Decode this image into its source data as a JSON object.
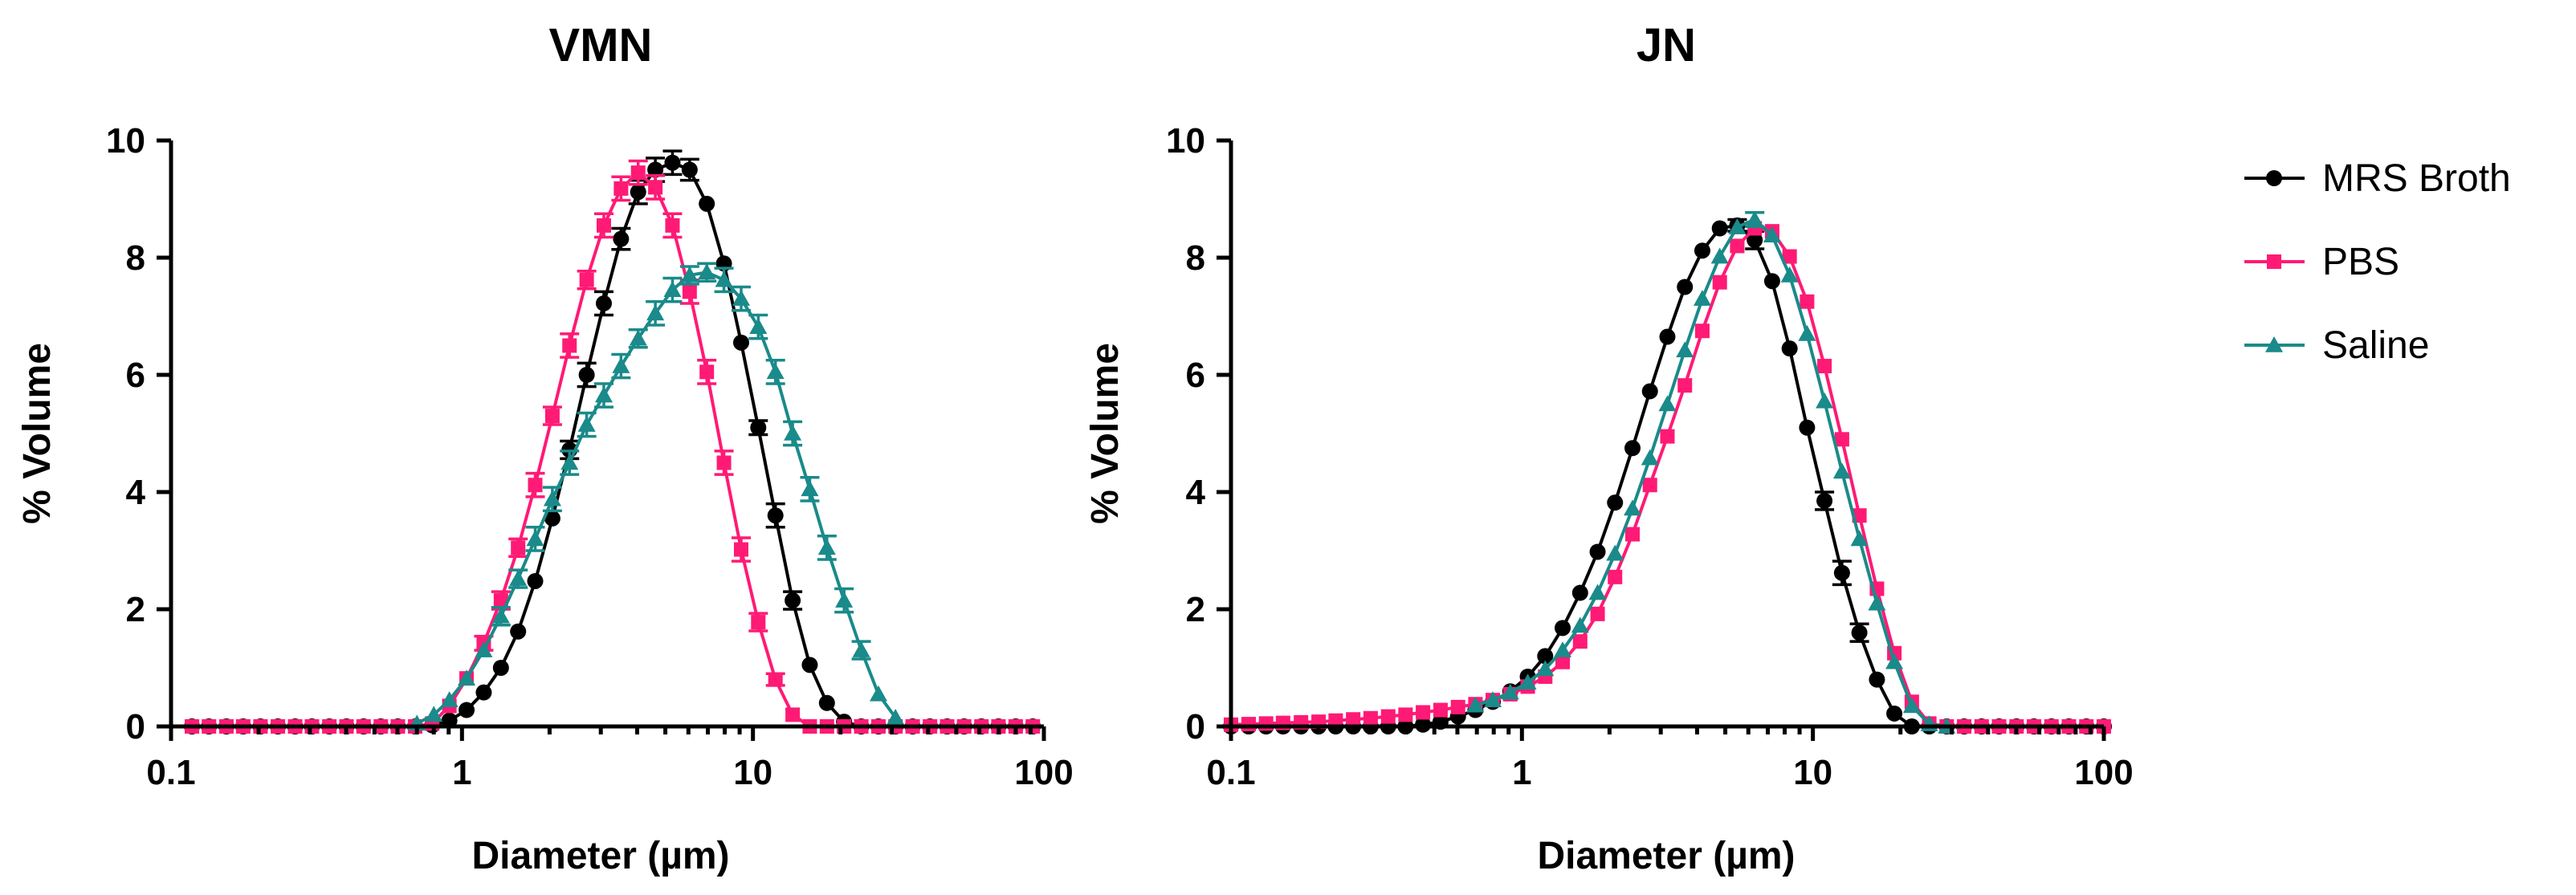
{
  "legend": {
    "entries": [
      {
        "name": "MRS Broth",
        "color": "#000000",
        "marker": "circle"
      },
      {
        "name": "PBS",
        "color": "#ff1a75",
        "marker": "square"
      },
      {
        "name": "Saline",
        "color": "#1a8a8a",
        "marker": "triangle"
      }
    ],
    "placement": "right"
  },
  "chart_data": [
    {
      "type": "line",
      "title": "VMN",
      "xlabel": "Diameter (µm)",
      "ylabel": "% Volume",
      "xscale": "log",
      "xlim": [
        0.1,
        100
      ],
      "ylim": [
        0,
        10
      ],
      "xticks": [
        0.1,
        1,
        10,
        100
      ],
      "xtick_labels": [
        "0.1",
        "1",
        "10",
        "100"
      ],
      "yticks": [
        0,
        2,
        4,
        6,
        8,
        10
      ],
      "ytick_labels": [
        "0",
        "2",
        "4",
        "6",
        "8",
        "10"
      ],
      "series": [
        {
          "name": "MRS Broth",
          "x": [
            0.118,
            0.135,
            0.155,
            0.177,
            0.203,
            0.233,
            0.267,
            0.305,
            0.35,
            0.401,
            0.459,
            0.526,
            0.602,
            0.69,
            0.79,
            0.905,
            1.037,
            1.188,
            1.361,
            1.559,
            1.785,
            2.045,
            2.342,
            2.683,
            3.073,
            3.52,
            4.032,
            4.619,
            5.29,
            6.06,
            6.94,
            7.95,
            9.11,
            10.43,
            11.95,
            13.69,
            15.68,
            17.96,
            20.57,
            23.57,
            27.0,
            30.9,
            35.4,
            40.6,
            46.5,
            53.2,
            61.0,
            69.8,
            80.0,
            91.6
          ],
          "y": [
            0,
            0,
            0,
            0,
            0,
            0,
            0,
            0,
            0,
            0,
            0,
            0,
            0,
            0,
            0.02,
            0.1,
            0.28,
            0.58,
            1.0,
            1.62,
            2.48,
            3.55,
            4.72,
            6.0,
            7.22,
            8.32,
            9.12,
            9.5,
            9.62,
            9.5,
            8.92,
            7.9,
            6.55,
            5.1,
            3.6,
            2.15,
            1.05,
            0.4,
            0.08,
            0,
            0,
            0,
            0,
            0,
            0,
            0,
            0,
            0,
            0,
            0
          ],
          "err": [
            0,
            0,
            0,
            0,
            0,
            0,
            0,
            0,
            0,
            0,
            0,
            0,
            0,
            0,
            0,
            0,
            0,
            0,
            0,
            0,
            0,
            0,
            0.15,
            0.2,
            0.2,
            0.18,
            0.2,
            0.2,
            0.2,
            0.18,
            0,
            0,
            0,
            0.12,
            0.2,
            0.15,
            0,
            0,
            0,
            0,
            0,
            0,
            0,
            0,
            0,
            0,
            0,
            0,
            0,
            0
          ]
        },
        {
          "name": "PBS",
          "x": [
            0.118,
            0.135,
            0.155,
            0.177,
            0.203,
            0.233,
            0.267,
            0.305,
            0.35,
            0.401,
            0.459,
            0.526,
            0.602,
            0.69,
            0.79,
            0.905,
            1.037,
            1.188,
            1.361,
            1.559,
            1.785,
            2.045,
            2.342,
            2.683,
            3.073,
            3.52,
            4.032,
            4.619,
            5.29,
            6.06,
            6.94,
            7.95,
            9.11,
            10.43,
            11.95,
            13.69,
            15.68,
            17.96,
            20.57,
            23.57,
            27.0,
            30.9,
            35.4,
            40.6,
            46.5,
            53.2,
            61.0,
            69.8,
            80.0,
            91.6
          ],
          "y": [
            0,
            0,
            0,
            0,
            0,
            0,
            0,
            0,
            0,
            0,
            0,
            0,
            0,
            0,
            0.05,
            0.35,
            0.82,
            1.42,
            2.15,
            3.05,
            4.12,
            5.3,
            6.5,
            7.62,
            8.55,
            9.18,
            9.45,
            9.2,
            8.55,
            7.42,
            6.05,
            4.5,
            3.02,
            1.78,
            0.8,
            0.2,
            0,
            0,
            0,
            0,
            0,
            0,
            0,
            0,
            0,
            0,
            0,
            0,
            0,
            0
          ],
          "err": [
            0,
            0,
            0,
            0,
            0,
            0,
            0,
            0,
            0,
            0,
            0,
            0,
            0,
            0,
            0,
            0,
            0,
            0.12,
            0.15,
            0.15,
            0.2,
            0.15,
            0.2,
            0.15,
            0.2,
            0.2,
            0.2,
            0.2,
            0.2,
            0.2,
            0.2,
            0.2,
            0.2,
            0.15,
            0.1,
            0,
            0,
            0,
            0,
            0,
            0,
            0,
            0,
            0,
            0,
            0,
            0,
            0,
            0,
            0
          ]
        },
        {
          "name": "Saline",
          "x": [
            0.7,
            0.8,
            0.905,
            1.037,
            1.188,
            1.361,
            1.559,
            1.785,
            2.045,
            2.342,
            2.683,
            3.073,
            3.52,
            4.032,
            4.619,
            5.29,
            6.06,
            6.94,
            7.95,
            9.11,
            10.43,
            11.95,
            13.69,
            15.68,
            17.96,
            20.57,
            23.57,
            27.0,
            30.9
          ],
          "y": [
            0.05,
            0.2,
            0.45,
            0.82,
            1.3,
            1.88,
            2.52,
            3.2,
            3.88,
            4.5,
            5.15,
            5.65,
            6.15,
            6.62,
            7.05,
            7.45,
            7.7,
            7.75,
            7.62,
            7.3,
            6.82,
            6.05,
            5.0,
            4.05,
            3.05,
            2.15,
            1.3,
            0.55,
            0.15
          ],
          "err": [
            0,
            0,
            0,
            0,
            0,
            0.15,
            0.15,
            0.2,
            0.2,
            0.2,
            0.2,
            0.2,
            0.2,
            0.15,
            0.2,
            0.2,
            0.15,
            0.15,
            0.2,
            0.2,
            0.2,
            0.2,
            0.2,
            0.2,
            0.2,
            0.2,
            0.15,
            0,
            0
          ]
        }
      ]
    },
    {
      "type": "line",
      "title": "JN",
      "xlabel": "Diameter (µm)",
      "ylabel": "% Volume",
      "xscale": "log",
      "xlim": [
        0.1,
        100
      ],
      "ylim": [
        0,
        10
      ],
      "xticks": [
        0.1,
        1,
        10,
        100
      ],
      "xtick_labels": [
        "0.1",
        "1",
        "10",
        "100"
      ],
      "yticks": [
        0,
        2,
        4,
        6,
        8,
        10
      ],
      "ytick_labels": [
        "0",
        "2",
        "4",
        "6",
        "8",
        "10"
      ],
      "series": [
        {
          "name": "MRS Broth",
          "x": [
            0.1,
            0.115,
            0.132,
            0.151,
            0.174,
            0.2,
            0.229,
            0.263,
            0.302,
            0.347,
            0.398,
            0.457,
            0.525,
            0.603,
            0.692,
            0.794,
            0.912,
            1.047,
            1.202,
            1.38,
            1.585,
            1.82,
            2.089,
            2.399,
            2.754,
            3.162,
            3.631,
            4.169,
            4.786,
            5.495,
            6.31,
            7.244,
            8.318,
            9.55,
            10.96,
            12.59,
            14.45,
            16.6,
            19.05,
            21.88,
            25.12,
            28.84,
            33.11,
            38.02,
            43.65,
            50.12,
            57.54,
            66.07,
            75.86,
            87.1,
            100.0
          ],
          "y": [
            0,
            0,
            0,
            0,
            0,
            0,
            0,
            0,
            0,
            0,
            0,
            0.03,
            0.08,
            0.17,
            0.28,
            0.42,
            0.6,
            0.85,
            1.2,
            1.68,
            2.28,
            2.98,
            3.82,
            4.75,
            5.72,
            6.65,
            7.5,
            8.12,
            8.5,
            8.55,
            8.3,
            7.6,
            6.45,
            5.1,
            3.85,
            2.62,
            1.6,
            0.8,
            0.22,
            0,
            0,
            0,
            0,
            0,
            0,
            0,
            0,
            0,
            0,
            0,
            0
          ],
          "err": [
            0,
            0,
            0,
            0,
            0,
            0,
            0,
            0,
            0,
            0,
            0,
            0,
            0,
            0,
            0,
            0,
            0,
            0,
            0,
            0,
            0,
            0,
            0,
            0,
            0,
            0,
            0,
            0,
            0,
            0.1,
            0.15,
            0,
            0,
            0,
            0.15,
            0.2,
            0.15,
            0,
            0,
            0,
            0,
            0,
            0,
            0,
            0,
            0,
            0,
            0,
            0,
            0,
            0
          ]
        },
        {
          "name": "PBS",
          "x": [
            0.1,
            0.115,
            0.132,
            0.151,
            0.174,
            0.2,
            0.229,
            0.263,
            0.302,
            0.347,
            0.398,
            0.457,
            0.525,
            0.603,
            0.692,
            0.794,
            0.912,
            1.047,
            1.202,
            1.38,
            1.585,
            1.82,
            2.089,
            2.399,
            2.754,
            3.162,
            3.631,
            4.169,
            4.786,
            5.495,
            6.31,
            7.244,
            8.318,
            9.55,
            10.96,
            12.59,
            14.45,
            16.6,
            19.05,
            21.88,
            25.12,
            28.84,
            33.11,
            38.02,
            43.65,
            50.12,
            57.54,
            66.07,
            75.86,
            87.1,
            100.0
          ],
          "y": [
            0.03,
            0.04,
            0.05,
            0.06,
            0.07,
            0.08,
            0.1,
            0.12,
            0.14,
            0.17,
            0.2,
            0.24,
            0.28,
            0.33,
            0.38,
            0.45,
            0.55,
            0.68,
            0.85,
            1.1,
            1.45,
            1.92,
            2.55,
            3.28,
            4.12,
            4.95,
            5.82,
            6.75,
            7.58,
            8.2,
            8.5,
            8.45,
            8.02,
            7.25,
            6.15,
            4.9,
            3.6,
            2.35,
            1.25,
            0.42,
            0.05,
            0,
            0,
            0,
            0,
            0,
            0,
            0,
            0,
            0,
            0
          ],
          "err": [
            0,
            0,
            0,
            0,
            0,
            0,
            0,
            0,
            0,
            0,
            0,
            0,
            0,
            0,
            0,
            0,
            0,
            0,
            0,
            0,
            0,
            0,
            0,
            0,
            0,
            0,
            0,
            0,
            0,
            0,
            0,
            0,
            0,
            0,
            0,
            0,
            0,
            0,
            0,
            0,
            0,
            0,
            0,
            0,
            0,
            0,
            0,
            0,
            0,
            0,
            0
          ]
        },
        {
          "name": "Saline",
          "x": [
            0.692,
            0.794,
            0.912,
            1.047,
            1.202,
            1.38,
            1.585,
            1.82,
            2.089,
            2.399,
            2.754,
            3.162,
            3.631,
            4.169,
            4.786,
            5.495,
            6.31,
            7.244,
            8.318,
            9.55,
            10.96,
            12.59,
            14.45,
            16.6,
            19.05,
            21.88,
            25.12,
            28.84
          ],
          "y": [
            0.36,
            0.45,
            0.58,
            0.75,
            0.98,
            1.3,
            1.72,
            2.28,
            2.95,
            3.72,
            4.58,
            5.5,
            6.42,
            7.3,
            8.02,
            8.52,
            8.65,
            8.38,
            7.7,
            6.7,
            5.55,
            4.35,
            3.2,
            2.1,
            1.1,
            0.35,
            0.04,
            0
          ],
          "err": [
            0,
            0,
            0,
            0,
            0,
            0,
            0,
            0,
            0,
            0,
            0,
            0,
            0,
            0,
            0,
            0,
            0.12,
            0,
            0,
            0,
            0,
            0,
            0,
            0,
            0,
            0,
            0,
            0
          ]
        }
      ]
    }
  ]
}
